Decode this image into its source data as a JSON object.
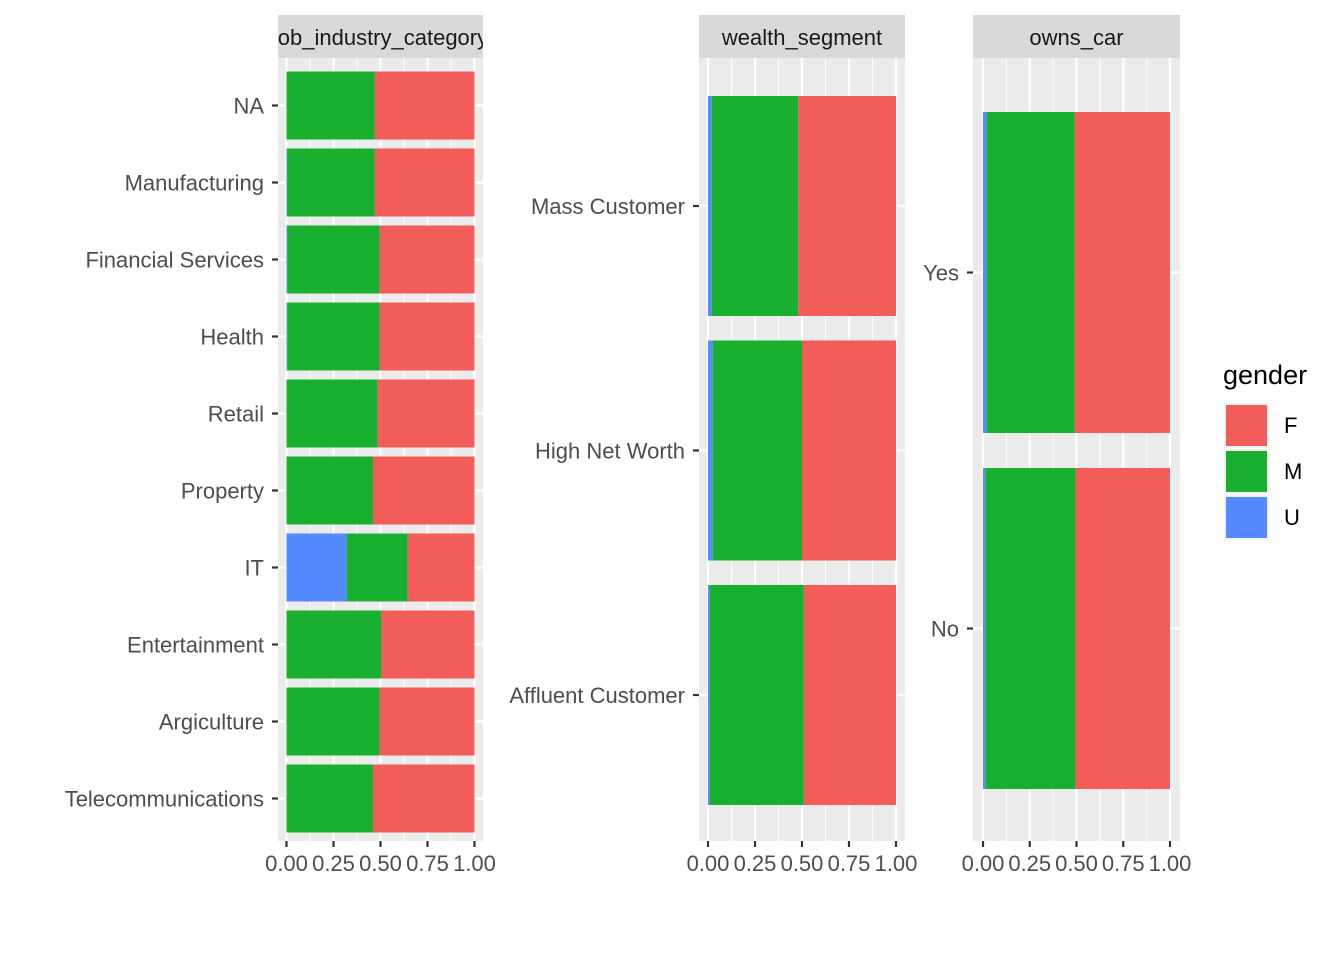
{
  "chart_data": [
    {
      "type": "bar",
      "orientation": "horizontal",
      "stacked": "fill",
      "facet_label": "job_industry_category",
      "categories": [
        "NA",
        "Manufacturing",
        "Financial Services",
        "Health",
        "Retail",
        "Property",
        "IT",
        "Entertainment",
        "Argiculture",
        "Telecommunications"
      ],
      "series": [
        {
          "name": "U",
          "values": [
            0.0,
            0.003,
            0.005,
            0.004,
            0.0,
            0.0,
            0.32,
            0.0,
            0.0,
            0.0
          ]
        },
        {
          "name": "M",
          "values": [
            0.47,
            0.467,
            0.49,
            0.491,
            0.485,
            0.46,
            0.325,
            0.505,
            0.495,
            0.46
          ]
        },
        {
          "name": "F",
          "values": [
            0.53,
            0.53,
            0.505,
            0.505,
            0.515,
            0.54,
            0.355,
            0.495,
            0.505,
            0.54
          ]
        }
      ],
      "xlim": [
        0,
        1
      ],
      "x_ticks": [
        "0.00",
        "0.25",
        "0.50",
        "0.75",
        "1.00"
      ]
    },
    {
      "type": "bar",
      "orientation": "horizontal",
      "stacked": "fill",
      "facet_label": "wealth_segment",
      "categories": [
        "Mass Customer",
        "High Net Worth",
        "Affluent Customer"
      ],
      "series": [
        {
          "name": "U",
          "values": [
            0.02,
            0.025,
            0.01
          ]
        },
        {
          "name": "M",
          "values": [
            0.46,
            0.475,
            0.5
          ]
        },
        {
          "name": "F",
          "values": [
            0.52,
            0.5,
            0.49
          ]
        }
      ],
      "xlim": [
        0,
        1
      ],
      "x_ticks": [
        "0.00",
        "0.25",
        "0.50",
        "0.75",
        "1.00"
      ]
    },
    {
      "type": "bar",
      "orientation": "horizontal",
      "stacked": "fill",
      "facet_label": "owns_car",
      "categories": [
        "Yes",
        "No"
      ],
      "series": [
        {
          "name": "U",
          "values": [
            0.02,
            0.015
          ]
        },
        {
          "name": "M",
          "values": [
            0.47,
            0.48
          ]
        },
        {
          "name": "F",
          "values": [
            0.51,
            0.505
          ]
        }
      ],
      "xlim": [
        0,
        1
      ],
      "x_ticks": [
        "0.00",
        "0.25",
        "0.50",
        "0.75",
        "1.00"
      ]
    }
  ],
  "legend": {
    "title": "gender",
    "placement": "right",
    "items": [
      {
        "label": "F",
        "color": "#F8766D"
      },
      {
        "label": "M",
        "color": "#1AB02F"
      },
      {
        "label": "U",
        "color": "#538AFF"
      }
    ]
  },
  "colors": {
    "F": "#F25D5A",
    "M": "#1AB02F",
    "U": "#538AFF",
    "panel": "#EBEBEB",
    "strip": "#D9D9D9",
    "grid": "#FFFFFF"
  },
  "grid": true
}
